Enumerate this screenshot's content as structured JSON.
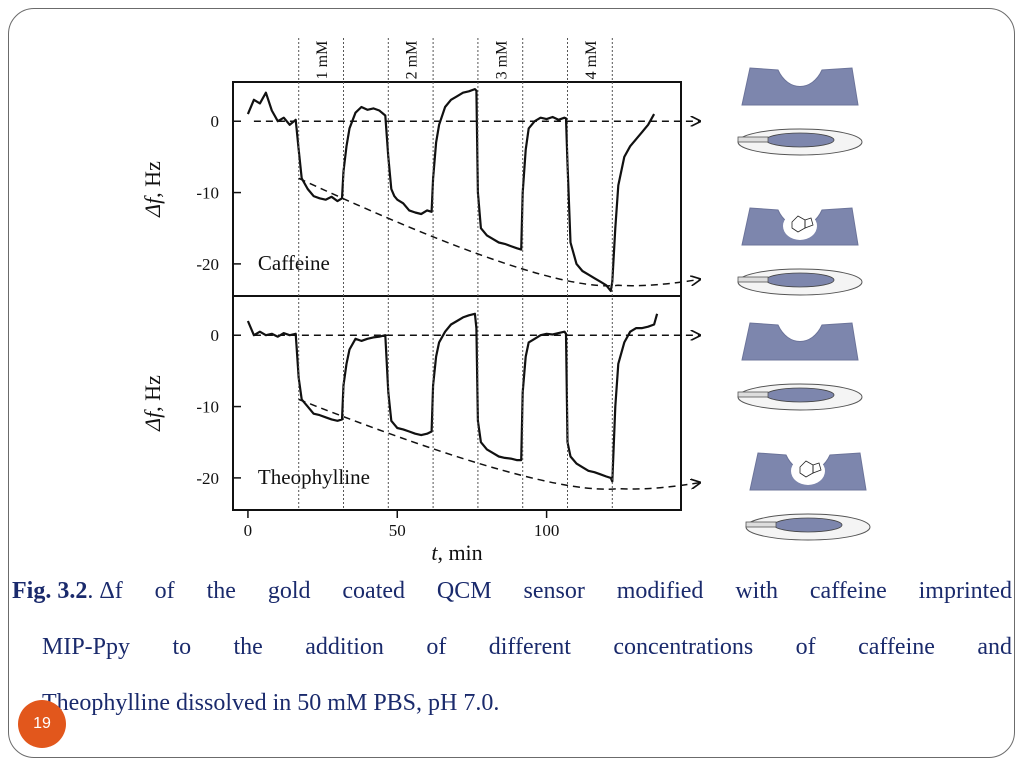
{
  "caption": {
    "label": "Fig. 3.2",
    "line1_words": [
      "Δf",
      "of",
      "the",
      "gold",
      "coated",
      "QCM",
      "sensor",
      "modified",
      "with",
      "caffeine",
      "imprinted"
    ],
    "line2_words": [
      "MIP-Ppy",
      "to",
      "the",
      "addition",
      "of",
      "different",
      "concentrations",
      "of",
      "caffeine",
      "and"
    ],
    "line3": "Theophylline  dissolved in 50 mM PBS, pH 7.0."
  },
  "slide_number": "19",
  "colors": {
    "caption_text": "#1a2a6c",
    "badge": "#e2571c",
    "cavity_fill": "#7d86ad",
    "trace": "#111111"
  },
  "chart_data": {
    "type": "line",
    "x_label_var": "t",
    "x_label_unit": ", min",
    "x_ticks": [
      0,
      50,
      100
    ],
    "xlim": [
      -5,
      145
    ],
    "concentration_labels": [
      "1 mM",
      "2 mM",
      "3 mM",
      "4 mM"
    ],
    "injection_times": [
      17,
      32,
      47,
      62,
      77,
      92,
      107,
      122
    ],
    "panels": [
      {
        "name": "Caffeine",
        "y_label_var": "Δf",
        "y_label_unit": ", Hz",
        "y_ticks": [
          0,
          -10,
          -20
        ],
        "ylim": [
          -24.5,
          5.5
        ],
        "x": [
          0,
          2,
          4,
          6,
          8,
          10,
          12,
          14,
          16,
          17,
          18,
          20,
          22,
          24,
          26,
          28,
          30,
          31.5,
          32,
          33,
          34,
          36,
          38,
          40,
          42,
          44,
          46,
          47,
          48,
          49,
          50,
          52,
          54,
          56,
          58,
          60,
          61.5,
          62,
          63,
          64,
          66,
          68,
          70,
          72,
          74,
          76,
          76.5,
          77,
          78,
          80,
          82,
          84,
          86,
          88,
          90,
          91.5,
          92,
          93,
          94,
          96,
          98,
          100,
          102,
          104,
          106,
          106.5,
          107,
          108,
          110,
          112,
          114,
          116,
          118,
          120,
          121.5,
          122,
          123,
          124,
          126,
          128,
          130,
          132,
          134,
          136
        ],
        "y": [
          1,
          3,
          2.5,
          4,
          1.5,
          0,
          0.5,
          -0.5,
          0.2,
          -4,
          -8,
          -9.5,
          -10.5,
          -10.8,
          -11,
          -10.6,
          -11.2,
          -10.8,
          -7,
          -3.5,
          -1,
          1.2,
          2,
          1.6,
          1.8,
          1.5,
          0.8,
          -5,
          -9.5,
          -10.5,
          -11,
          -11.5,
          -12.5,
          -12.8,
          -13,
          -12.5,
          -12.7,
          -8,
          -3,
          -0.5,
          2,
          3,
          3.5,
          4,
          4.2,
          4.5,
          4.3,
          -10,
          -15,
          -16,
          -16.5,
          -17,
          -17.2,
          -17.5,
          -17.8,
          -18,
          -10,
          -4,
          -1,
          0,
          0.5,
          0.3,
          0.6,
          0.2,
          0.5,
          0.4,
          -6,
          -17,
          -20,
          -21,
          -21.5,
          -22,
          -22.5,
          -23,
          -23.8,
          -22.5,
          -15,
          -9,
          -5,
          -3.5,
          -2.5,
          -1.5,
          -0.5,
          1
        ]
      },
      {
        "name": "Theophylline",
        "y_label_var": "Δf",
        "y_label_unit": ", Hz",
        "y_ticks": [
          0,
          -10,
          -20
        ],
        "ylim": [
          -24.5,
          5.5
        ],
        "x": [
          0,
          2,
          4,
          6,
          8,
          10,
          12,
          14,
          16,
          17,
          18,
          20,
          22,
          24,
          26,
          28,
          30,
          31.5,
          32,
          33,
          34,
          36,
          38,
          40,
          42,
          44,
          46,
          47,
          48,
          49,
          50,
          52,
          54,
          56,
          58,
          60,
          61.5,
          62,
          63,
          64,
          66,
          68,
          70,
          72,
          74,
          76,
          76.5,
          77,
          78,
          80,
          82,
          84,
          86,
          88,
          90,
          91.5,
          92,
          93,
          94,
          96,
          98,
          100,
          102,
          104,
          106,
          106.5,
          107,
          108,
          110,
          112,
          114,
          116,
          118,
          120,
          121.5,
          122,
          123,
          124,
          126,
          128,
          130,
          132,
          134,
          136,
          137
        ],
        "y": [
          2,
          0,
          0.5,
          0,
          0.2,
          -0.2,
          0.3,
          0,
          0.2,
          -6,
          -9,
          -10,
          -11,
          -11.2,
          -11.5,
          -11.8,
          -12,
          -11.8,
          -7,
          -4,
          -2,
          -0.5,
          -0.8,
          -0.5,
          -0.3,
          -0.2,
          0,
          -8,
          -12,
          -12.5,
          -13,
          -13.2,
          -13.5,
          -13.8,
          -14,
          -13.8,
          -13.5,
          -7,
          -3,
          -1,
          0.5,
          1.5,
          2,
          2.5,
          2.8,
          3,
          1,
          -12,
          -15,
          -16,
          -16.5,
          -17,
          -17.2,
          -17.3,
          -17.5,
          -17.5,
          -8,
          -3,
          -1,
          -0.5,
          0,
          0.2,
          0.1,
          0.3,
          0.5,
          0.2,
          -15,
          -17,
          -18,
          -18.5,
          -19,
          -19.2,
          -19.5,
          -19.8,
          -20,
          -20.5,
          -10,
          -4,
          -1,
          0.5,
          1,
          1,
          1.2,
          1.5,
          3
        ]
      }
    ]
  }
}
